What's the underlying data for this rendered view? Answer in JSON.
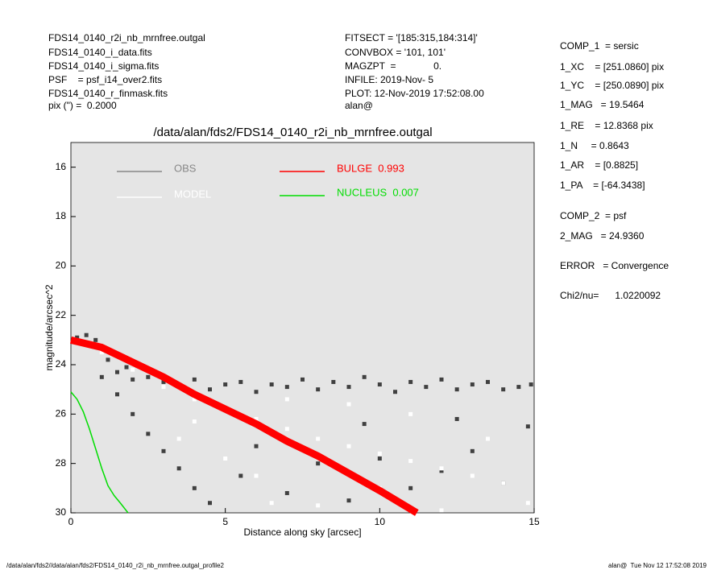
{
  "header": {
    "left": [
      "FDS14_0140_r2i_nb_mrnfree.outgal",
      "FDS14_0140_i_data.fits",
      "FDS14_0140_i_sigma.fits",
      "PSF    = psf_i14_over2.fits",
      "FDS14_0140_r_finmask.fits",
      "pix (\") =  0.2000"
    ],
    "middle": [
      "FITSECT = '[185:315,184:314]'",
      "CONVBOX = '101, 101'",
      "MAGZPT  =              0.",
      "INFILE: 2019-Nov- 5",
      "PLOT: 12-Nov-2019 17:52:08.00",
      "alan@"
    ],
    "right": [
      "COMP_1  = sersic",
      "1_XC    = [251.0860] pix",
      "1_YC    = [250.0890] pix",
      "1_MAG   = 19.5464",
      "1_RE    = 12.8368 pix",
      "1_N     = 0.8643",
      "1_AR    = [0.8825]",
      "1_PA    = [-64.3438]",
      "COMP_2  = psf",
      "2_MAG   = 24.9360",
      "ERROR   = Convergence",
      "Chi2/nu=      1.0220092"
    ]
  },
  "footer": {
    "left": "/data/alan/fds2//data/alan/fds2/FDS14_0140_r2i_nb_mrnfree.outgal_profile2",
    "right": "alan@  Tue Nov 12 17:52:08 2019"
  },
  "chart_data": {
    "type": "scatter",
    "title": "/data/alan/fds2/FDS14_0140_r2i_nb_mrnfree.outgal",
    "xlabel": "Distance along sky [arcsec]",
    "ylabel": "magnitude/arcsec^2",
    "xlim": [
      0,
      15
    ],
    "xticks": [
      0,
      5,
      10,
      15
    ],
    "ylim": [
      15,
      30
    ],
    "yticks": [
      16,
      18,
      20,
      22,
      24,
      26,
      28,
      30
    ],
    "y_inverted": true,
    "background": "#e5e5e5",
    "series": [
      {
        "name": "OBS",
        "color": "#888888",
        "marker_color": "#404040",
        "mode": "markers",
        "x": [
          0.2,
          0.5,
          0.8,
          1.0,
          1.2,
          1.5,
          1.8,
          2.0,
          2.5,
          3.0,
          3.5,
          4.0,
          4.5,
          5.0,
          5.5,
          6.0,
          6.5,
          7.0,
          7.5,
          8.0,
          8.5,
          9.0,
          9.5,
          10.0,
          10.5,
          11.0,
          11.5,
          12.0,
          12.5,
          13.0,
          13.5,
          14.0,
          14.5,
          14.9,
          1.5,
          2.0,
          2.5,
          3.0,
          3.5,
          4.0,
          4.5,
          5.5,
          6.0,
          7.0,
          8.0,
          9.0,
          10.0,
          11.0,
          12.0,
          13.0,
          14.0,
          14.8,
          12.5,
          9.5,
          1.0,
          1.3,
          0.5
        ],
        "values": [
          22.9,
          22.8,
          23.0,
          23.3,
          23.8,
          24.3,
          24.1,
          24.6,
          24.5,
          24.7,
          24.9,
          24.6,
          25.0,
          24.8,
          24.7,
          25.1,
          24.8,
          24.9,
          24.6,
          25.0,
          24.7,
          24.9,
          24.5,
          24.8,
          25.1,
          24.7,
          24.9,
          24.6,
          25.0,
          24.8,
          24.7,
          25.0,
          24.9,
          24.8,
          25.2,
          26.0,
          26.8,
          27.5,
          28.2,
          29.0,
          29.6,
          28.5,
          27.3,
          29.2,
          28.0,
          29.5,
          27.8,
          29.0,
          28.3,
          27.5,
          28.8,
          26.5,
          26.2,
          26.4,
          24.5,
          23.5,
          23.2
        ]
      },
      {
        "name": "MODEL",
        "color": "#ffffff",
        "marker_color": "#ffffff",
        "mode": "markers",
        "x": [
          1,
          2,
          3,
          4,
          5,
          6,
          7,
          8,
          9,
          10,
          11,
          12,
          13,
          14,
          14.8,
          6,
          8,
          10,
          12,
          13.5,
          3.5,
          5,
          7,
          9,
          11,
          4,
          6.5
        ],
        "values": [
          23.5,
          24.2,
          24.9,
          25.4,
          25.8,
          26.2,
          26.6,
          27.0,
          27.3,
          27.6,
          27.9,
          28.2,
          28.5,
          28.8,
          29.6,
          28.5,
          29.7,
          29.0,
          29.9,
          27.0,
          27.0,
          27.8,
          25.4,
          25.6,
          26.0,
          26.3,
          29.6
        ]
      },
      {
        "name": "BULGE  0.993",
        "color": "#ff0000",
        "mode": "line",
        "width": 9,
        "x": [
          0,
          1,
          2,
          3,
          4,
          5,
          6,
          7,
          8,
          9,
          10,
          11.2
        ],
        "values": [
          23.0,
          23.3,
          23.9,
          24.5,
          25.2,
          25.8,
          26.4,
          27.1,
          27.7,
          28.4,
          29.1,
          30.0
        ]
      },
      {
        "name": "NUCLEUS  0.007",
        "color": "#00dd00",
        "mode": "line",
        "width": 1.5,
        "x": [
          0,
          0.2,
          0.4,
          0.6,
          0.8,
          1.0,
          1.2,
          1.4,
          1.6,
          1.85
        ],
        "values": [
          25.1,
          25.4,
          25.9,
          26.6,
          27.4,
          28.2,
          28.9,
          29.3,
          29.6,
          30.0
        ]
      }
    ]
  }
}
